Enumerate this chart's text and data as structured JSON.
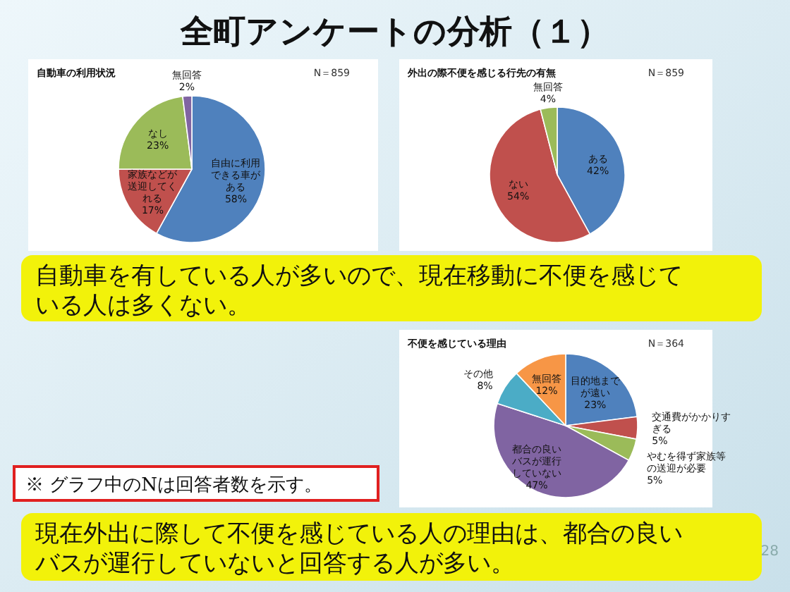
{
  "chart_data": [
    {
      "type": "other",
      "title": "全町アンケートの分析（１）",
      "annotations": [
        "自動車を有している人が多いので、現在移動に不便を感じている人は多くない。",
        "※ グラフ中のNは回答者数を示す。",
        "現在外出に際して不便を感じている人の理由は、都合の良いバスが運行していないと回答する人が多い。",
        "28"
      ]
    },
    {
      "type": "pie",
      "title": "自動車の利用状況",
      "annotations": [
        "N＝859"
      ],
      "categories": [
        "自由に利用できる車がある",
        "家族などが送迎してくれる",
        "なし",
        "無回答"
      ],
      "values": [
        58,
        17,
        23,
        2
      ],
      "value_labels": [
        "58%",
        "17%",
        "23%",
        "2%"
      ],
      "colors": [
        "#4f81bd",
        "#c0504d",
        "#9bbb59",
        "#8064a2"
      ]
    },
    {
      "type": "pie",
      "title": "外出の際不便を感じる行先の有無",
      "annotations": [
        "N＝859"
      ],
      "categories": [
        "ある",
        "ない",
        "無回答"
      ],
      "values": [
        42,
        54,
        4
      ],
      "value_labels": [
        "42%",
        "54%",
        "4%"
      ],
      "colors": [
        "#4f81bd",
        "#c0504d",
        "#9bbb59"
      ]
    },
    {
      "type": "pie",
      "title": "不便を感じている理由",
      "annotations": [
        "N＝364"
      ],
      "categories": [
        "目的地までが遠い",
        "交通費がかかりすぎる",
        "やむを得ず家族等の送迎が必要",
        "都合の良いバスが運行していない",
        "その他",
        "無回答"
      ],
      "values": [
        23,
        5,
        5,
        47,
        8,
        12
      ],
      "value_labels": [
        "23%",
        "5%",
        "5%",
        "47%",
        "8%",
        "12%"
      ],
      "colors": [
        "#4f81bd",
        "#c0504d",
        "#9bbb59",
        "#8064a2",
        "#4bacc6",
        "#f79646"
      ]
    }
  ]
}
